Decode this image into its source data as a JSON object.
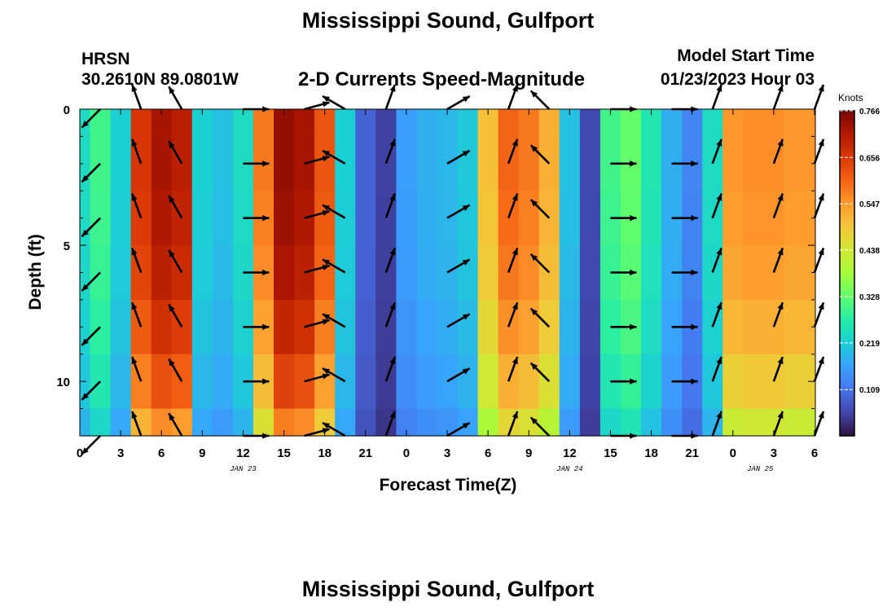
{
  "header": {
    "title": "Mississippi Sound, Gulfport",
    "station": "HRSN",
    "coords": "30.2610N  89.0801W",
    "subtitle": "2-D Currents Speed-Magnitude",
    "model_start_label": "Model Start Time",
    "model_start_value": "01/23/2023 Hour 03"
  },
  "footer": {
    "title": "Mississippi Sound, Gulfport"
  },
  "chart_data": {
    "type": "heatmap",
    "xlabel": "Forecast Time(Z)",
    "ylabel": "Depth (ft)",
    "x_hours_from_jan23_00z": [
      0,
      1.5,
      3,
      4.5,
      6,
      7.5,
      9,
      10.5,
      12,
      13.5,
      15,
      16.5,
      18,
      19.5,
      21,
      22.5,
      24,
      25.5,
      27,
      28.5,
      30,
      31.5,
      33,
      34.5,
      36,
      37.5,
      39,
      40.5,
      42,
      43.5,
      45,
      46.5,
      48,
      49.5,
      51,
      52.5,
      54
    ],
    "x_tick_labels": [
      "0",
      "3",
      "6",
      "9",
      "12",
      "15",
      "18",
      "21",
      "0",
      "3",
      "6",
      "9",
      "12",
      "15",
      "18",
      "21",
      "0",
      "3",
      "6"
    ],
    "x_date_labels": [
      {
        "label": "JAN 23",
        "hour": 12
      },
      {
        "label": "JAN 24",
        "hour": 36
      },
      {
        "label": "JAN 25",
        "hour": 50
      }
    ],
    "y_range_ft": [
      0,
      12
    ],
    "y_tick_labels": [
      "0",
      "5",
      "10"
    ],
    "depths_ft": [
      0,
      2,
      4,
      6,
      8,
      10,
      12
    ],
    "speed_knots_by_time": [
      0.24,
      0.3,
      0.22,
      0.66,
      0.72,
      0.7,
      0.22,
      0.2,
      0.24,
      0.58,
      0.74,
      0.72,
      0.62,
      0.22,
      0.09,
      0.05,
      0.16,
      0.18,
      0.19,
      0.21,
      0.5,
      0.6,
      0.58,
      0.52,
      0.2,
      0.06,
      0.3,
      0.33,
      0.26,
      0.18,
      0.13,
      0.24,
      0.55,
      0.56,
      0.56,
      0.55,
      0.55
    ],
    "depth_factor": [
      1.0,
      1.0,
      0.99,
      0.97,
      0.93,
      0.87,
      0.78
    ],
    "arrow_times_hours": [
      1.5,
      4.5,
      7.5,
      12,
      16.5,
      19.5,
      22.5,
      27,
      31.5,
      34.5,
      39,
      43.5,
      46.5,
      51,
      54
    ],
    "arrow_direction_deg_to": [
      225,
      340,
      330,
      90,
      75,
      300,
      20,
      60,
      20,
      315,
      90,
      90,
      20,
      20,
      20
    ],
    "colorbar": {
      "units": "Knots",
      "min": 0.0,
      "max": 0.766,
      "tick_values": [
        0.109,
        0.219,
        0.328,
        0.438,
        0.547,
        0.656,
        0.766
      ],
      "tick_labels": [
        "0.109",
        "0.219",
        "0.328",
        "0.438",
        "0.547",
        "0.656",
        "0.766"
      ],
      "palette": [
        "#30123b",
        "#4145ab",
        "#4675ed",
        "#39a2fc",
        "#1bcfd4",
        "#24eca6",
        "#61fc6c",
        "#a4fc3b",
        "#d1e834",
        "#f3c63a",
        "#fe9b2d",
        "#f36315",
        "#d93806",
        "#b11901",
        "#7a0402"
      ]
    }
  }
}
